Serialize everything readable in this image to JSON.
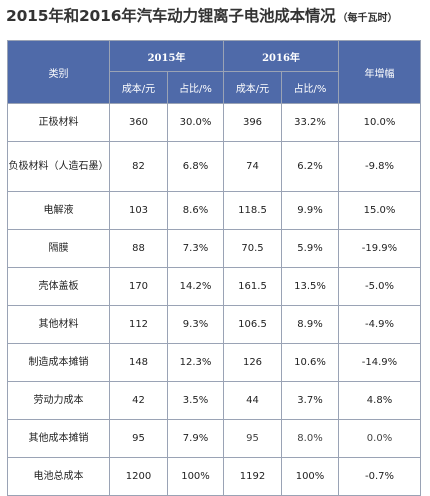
{
  "title": "2015年和2016年汽车动力锂离子电池成本情况",
  "unit": "（每千瓦时）",
  "headers": {
    "category": "类别",
    "year2015": "2015年",
    "year2016": "2016年",
    "growth": "年增幅",
    "cost": "成本/元",
    "share": "占比/%"
  },
  "rows": [
    {
      "name": "正极材料",
      "c2015": "360",
      "p2015": "30.0%",
      "c2016": "396",
      "p2016": "33.2%",
      "growth": "10.0%"
    },
    {
      "name": "负极材料（人造石墨）",
      "c2015": "82",
      "p2015": "6.8%",
      "c2016": "74",
      "p2016": "6.2%",
      "growth": "-9.8%"
    },
    {
      "name": "电解液",
      "c2015": "103",
      "p2015": "8.6%",
      "c2016": "118.5",
      "p2016": "9.9%",
      "growth": "15.0%"
    },
    {
      "name": "隔膜",
      "c2015": "88",
      "p2015": "7.3%",
      "c2016": "70.5",
      "p2016": "5.9%",
      "growth": "-19.9%"
    },
    {
      "name": "壳体盖板",
      "c2015": "170",
      "p2015": "14.2%",
      "c2016": "161.5",
      "p2016": "13.5%",
      "growth": "-5.0%"
    },
    {
      "name": "其他材料",
      "c2015": "112",
      "p2015": "9.3%",
      "c2016": "106.5",
      "p2016": "8.9%",
      "growth": "-4.9%"
    },
    {
      "name": "制造成本摊销",
      "c2015": "148",
      "p2015": "12.3%",
      "c2016": "126",
      "p2016": "10.6%",
      "growth": "-14.9%"
    },
    {
      "name": "劳动力成本",
      "c2015": "42",
      "p2015": "3.5%",
      "c2016": "44",
      "p2016": "3.7%",
      "growth": "4.8%"
    },
    {
      "name": "其他成本摊销",
      "c2015": "95",
      "p2015": "7.9%",
      "c2016": "95",
      "p2016": "8.0%",
      "growth": "0.0%"
    },
    {
      "name": "电池总成本",
      "c2015": "1200",
      "p2015": "100%",
      "c2016": "1192",
      "p2016": "100%",
      "growth": "-0.7%"
    }
  ]
}
